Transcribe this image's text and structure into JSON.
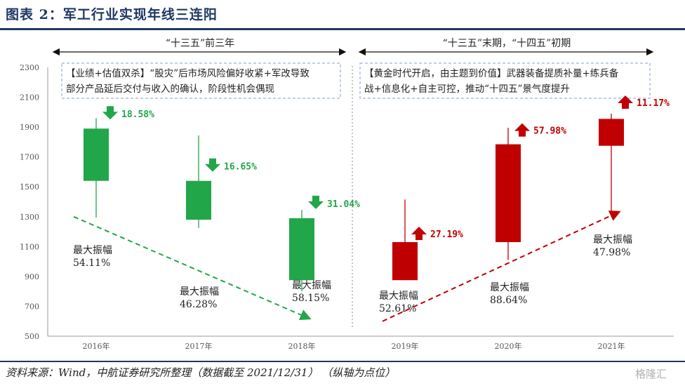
{
  "title": "图表 2：军工行业实现年线三连阳",
  "source": "资料来源：Wind，中航证券研究所整理（数据截至 2021/12/31）  （纵轴为点位）",
  "watermark": "格隆汇",
  "periods": [
    {
      "label": "“十三五”前三年",
      "note_lines": [
        "【业绩+估值双杀】“股灾”后市场风险偏好收紧+军改导致",
        "部分产品延后交付与收入的确认，阶段性机会偶现"
      ]
    },
    {
      "label": "“十三五”末期，“十四五”初期",
      "note_lines": [
        "【黄金时代开启，由主题到价值】武器装备提质补量+练兵备",
        "战+信息化+自主可控，推动“十四五”景气度提升"
      ]
    }
  ],
  "colors": {
    "down": "#22a64a",
    "up": "#c00000",
    "note_border": "#7f9fd0",
    "axis": "#999999"
  },
  "chart_data": {
    "type": "candlestick",
    "categories": [
      "2016年",
      "2017年",
      "2018年",
      "2019年",
      "2020年",
      "2021年"
    ],
    "ylim": [
      500,
      2300
    ],
    "yticks": [
      500,
      700,
      900,
      1100,
      1300,
      1500,
      1700,
      1900,
      2100,
      2300
    ],
    "series": [
      {
        "x": "2016年",
        "open": 1890,
        "close": 1540,
        "high": 1960,
        "low": 1295,
        "direction": "down",
        "change": "18.58%",
        "amp_label": "最大振幅",
        "amplitude": "54.11%"
      },
      {
        "x": "2017年",
        "open": 1540,
        "close": 1280,
        "high": 1845,
        "low": 1225,
        "direction": "down",
        "change": "16.65%",
        "amp_label": "最大振幅",
        "amplitude": "46.28%"
      },
      {
        "x": "2018年",
        "open": 1290,
        "close": 875,
        "high": 1345,
        "low": 800,
        "direction": "down",
        "change": "31.04%",
        "amp_label": "最大振幅",
        "amplitude": "58.15%"
      },
      {
        "x": "2019年",
        "open": 875,
        "close": 1130,
        "high": 1415,
        "low": 875,
        "direction": "up",
        "change": "27.19%",
        "amp_label": "最大振幅",
        "amplitude": "52.61%"
      },
      {
        "x": "2020年",
        "open": 1130,
        "close": 1785,
        "high": 1895,
        "low": 1010,
        "direction": "up",
        "change": "57.98%",
        "amp_label": "最大振幅",
        "amplitude": "88.64%"
      },
      {
        "x": "2021年",
        "open": 1775,
        "close": 1955,
        "high": 1990,
        "low": 1330,
        "direction": "up",
        "change": "11.17%",
        "amp_label": "最大振幅",
        "amplitude": "47.98%"
      }
    ],
    "trend_lines": [
      {
        "direction": "down",
        "from": {
          "x": "2016年",
          "y": 1300
        },
        "to": {
          "x": "2018年",
          "y": 620
        }
      },
      {
        "direction": "up",
        "from": {
          "x": "2019年",
          "y": 600
        },
        "to": {
          "x": "2021年",
          "y": 1330
        }
      }
    ]
  }
}
